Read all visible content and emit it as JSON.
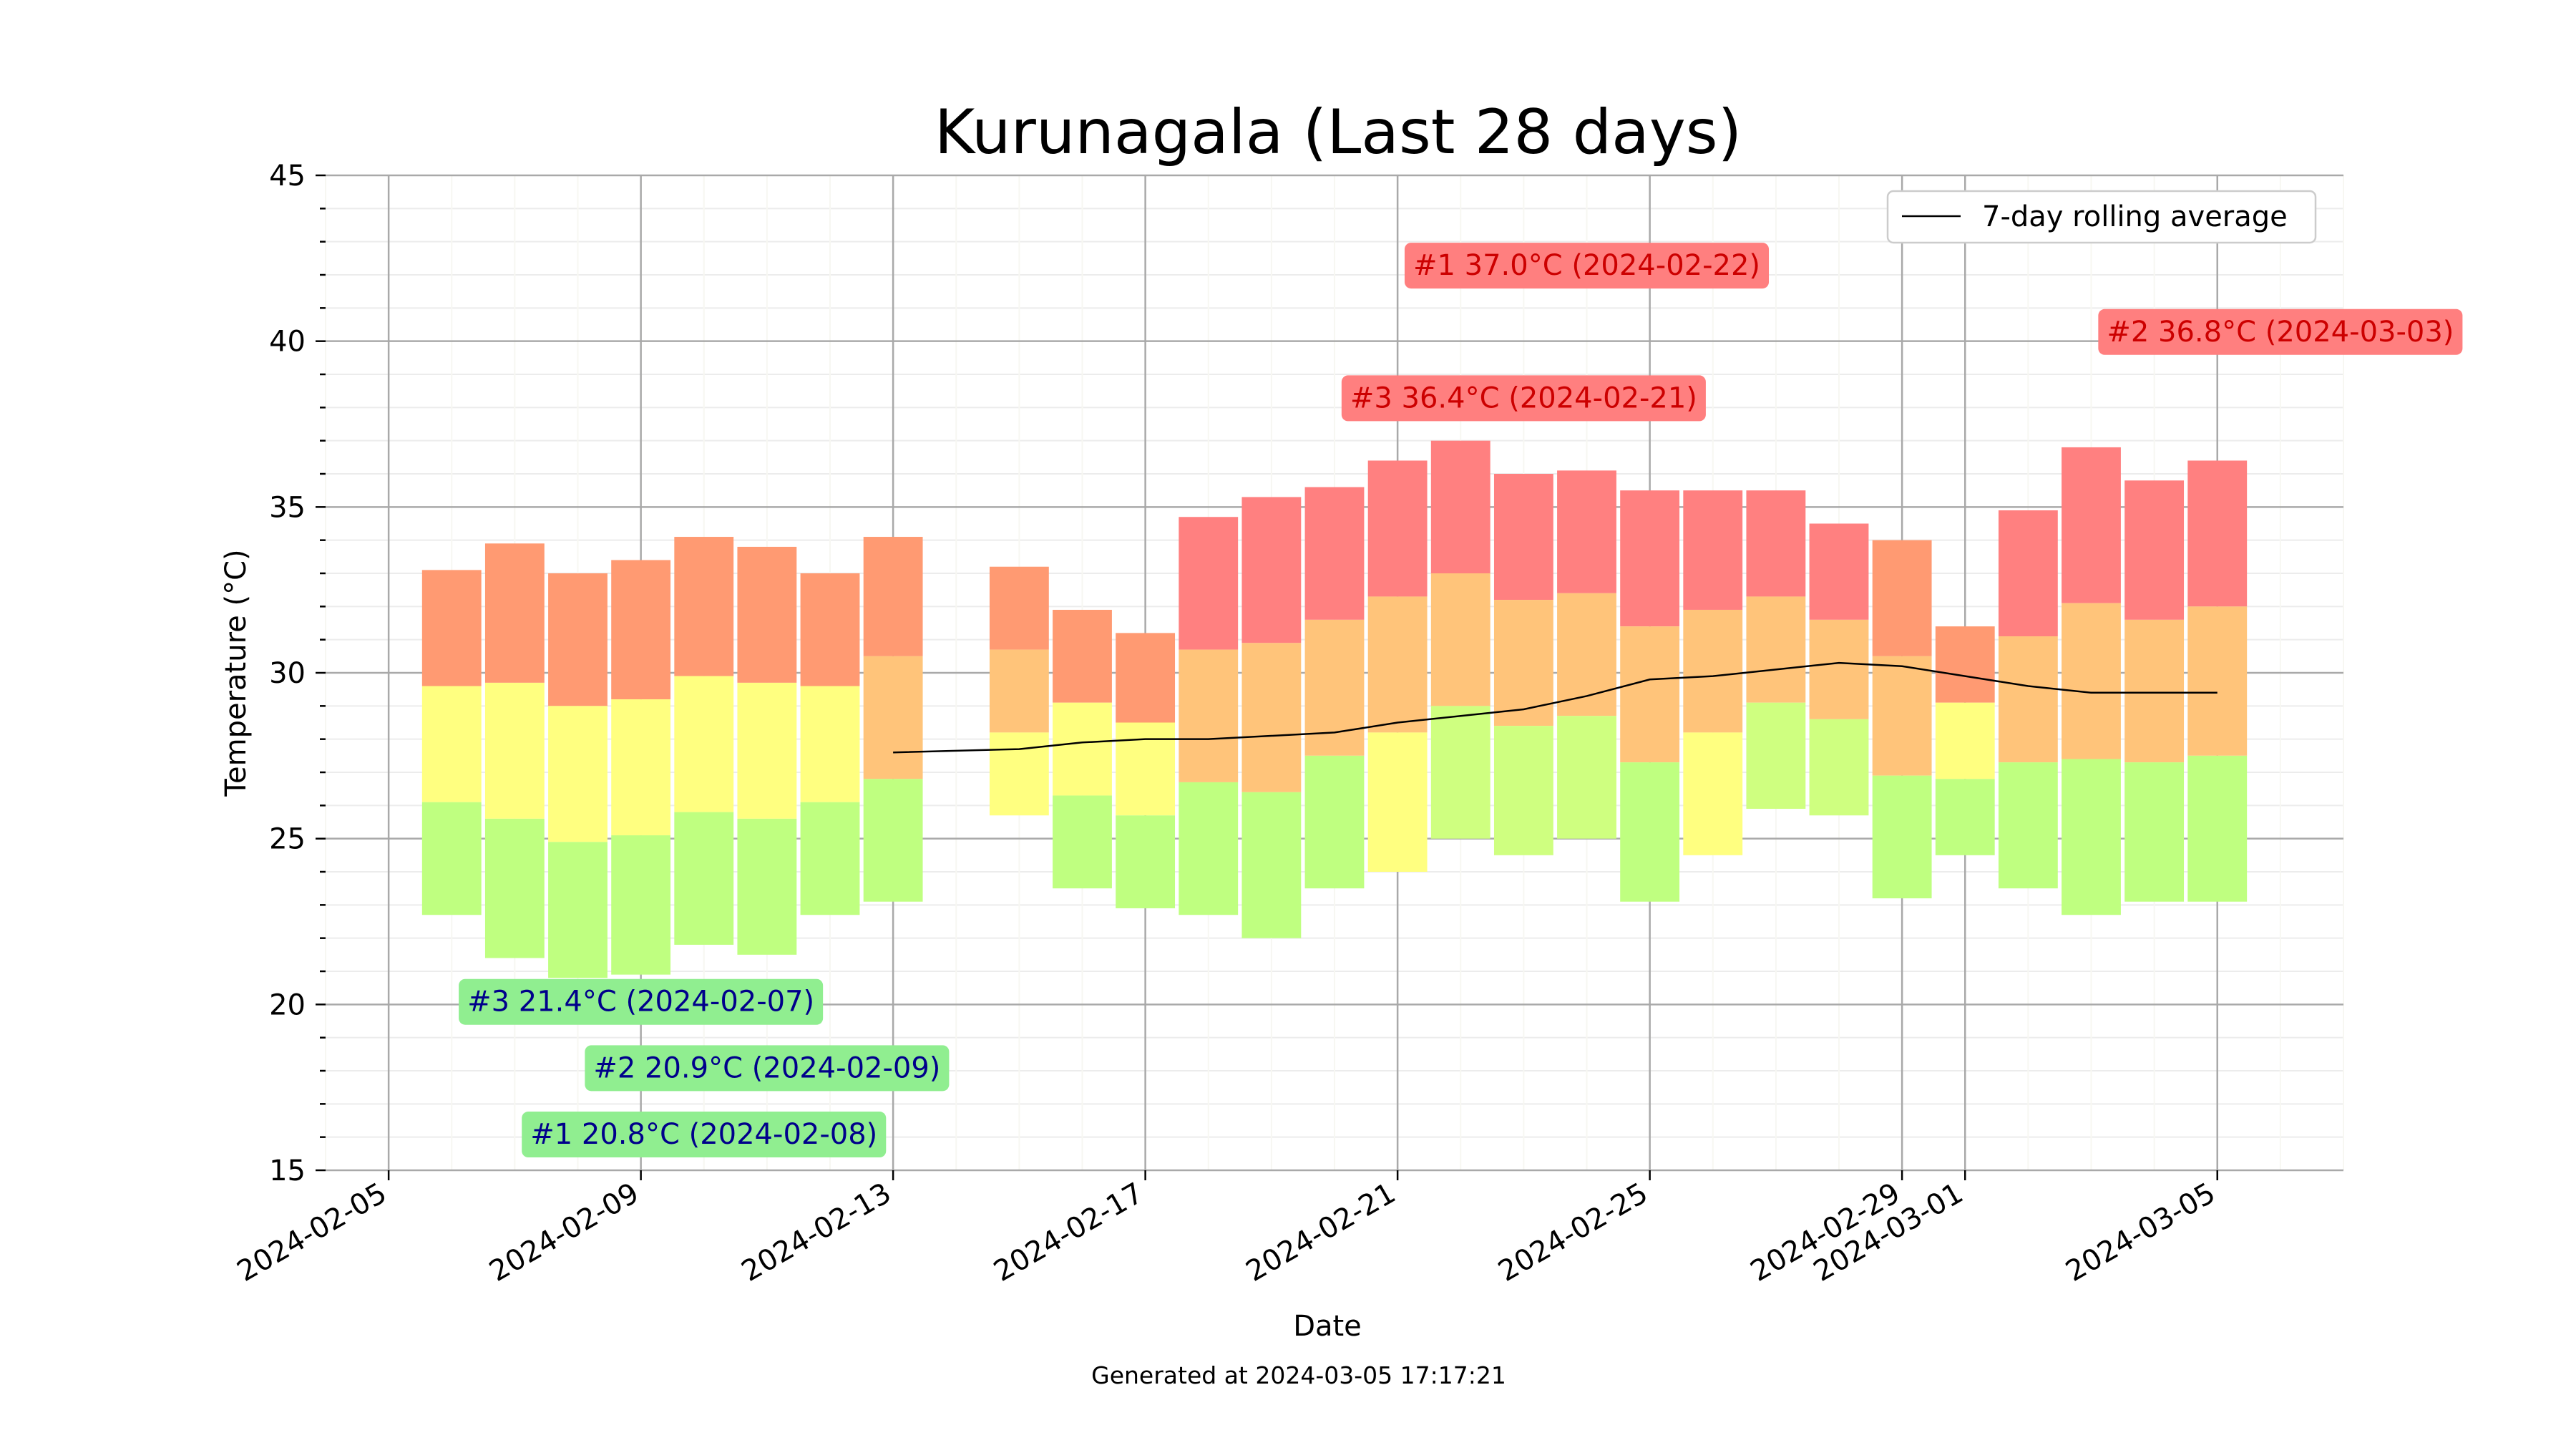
{
  "chart_data": {
    "type": "bar",
    "title": "Kurunagala (Last 28 days)",
    "xlabel": "Date",
    "ylabel": "Temperature (°C)",
    "footer": "Generated at 2024-03-05 17:17:21",
    "ylim": [
      15,
      45
    ],
    "y_ticks": [
      15,
      20,
      25,
      30,
      35,
      40,
      45
    ],
    "x_range": [
      "2024-02-04",
      "2024-03-07"
    ],
    "x_tick_labels": [
      "2024-02-05",
      "2024-02-09",
      "2024-02-13",
      "2024-02-17",
      "2024-02-21",
      "2024-02-25",
      "2024-02-29",
      "2024-03-01",
      "2024-03-05"
    ],
    "grid": true,
    "legend": {
      "position": "top-right",
      "entries": [
        "7-day rolling average"
      ]
    },
    "colors": {
      "hot": "#ff8080",
      "warm_high": "#ff9a72",
      "warm": "#ffc47a",
      "mild": "#ffff80",
      "mild_green": "#cfff80",
      "cool": "#bfff80",
      "cool_green": "#99ff80"
    },
    "days": [
      {
        "date": "2024-02-06",
        "min": 22.7,
        "mean": 26.1,
        "median": 29.6,
        "max": 33.1
      },
      {
        "date": "2024-02-07",
        "min": 21.4,
        "mean": 25.6,
        "median": 29.7,
        "max": 33.9
      },
      {
        "date": "2024-02-08",
        "min": 20.8,
        "mean": 24.9,
        "median": 29.0,
        "max": 33.0
      },
      {
        "date": "2024-02-09",
        "min": 20.9,
        "mean": 25.1,
        "median": 29.2,
        "max": 33.4
      },
      {
        "date": "2024-02-10",
        "min": 21.8,
        "mean": 25.8,
        "median": 29.9,
        "max": 34.1
      },
      {
        "date": "2024-02-11",
        "min": 21.5,
        "mean": 25.6,
        "median": 29.7,
        "max": 33.8
      },
      {
        "date": "2024-02-12",
        "min": 22.7,
        "mean": 26.1,
        "median": 29.6,
        "max": 33.0
      },
      {
        "date": "2024-02-13",
        "min": 23.1,
        "mean": 26.8,
        "median": 30.5,
        "max": 34.1
      },
      {
        "date": "2024-02-15",
        "min": 25.7,
        "mean": 28.2,
        "median": 30.7,
        "max": 33.2
      },
      {
        "date": "2024-02-16",
        "min": 23.5,
        "mean": 26.3,
        "median": 29.1,
        "max": 31.9
      },
      {
        "date": "2024-02-17",
        "min": 22.9,
        "mean": 25.7,
        "median": 28.5,
        "max": 31.2
      },
      {
        "date": "2024-02-18",
        "min": 22.7,
        "mean": 26.7,
        "median": 30.7,
        "max": 34.7
      },
      {
        "date": "2024-02-19",
        "min": 22.0,
        "mean": 26.4,
        "median": 30.9,
        "max": 35.3
      },
      {
        "date": "2024-02-20",
        "min": 23.5,
        "mean": 27.5,
        "median": 31.6,
        "max": 35.6
      },
      {
        "date": "2024-02-21",
        "min": 24.0,
        "mean": 28.2,
        "median": 32.3,
        "max": 36.4
      },
      {
        "date": "2024-02-22",
        "min": 25.0,
        "mean": 29.0,
        "median": 33.0,
        "max": 37.0
      },
      {
        "date": "2024-02-23",
        "min": 24.5,
        "mean": 28.4,
        "median": 32.2,
        "max": 36.0
      },
      {
        "date": "2024-02-24",
        "min": 25.0,
        "mean": 28.7,
        "median": 32.4,
        "max": 36.1
      },
      {
        "date": "2024-02-25",
        "min": 23.1,
        "mean": 27.3,
        "median": 31.4,
        "max": 35.5
      },
      {
        "date": "2024-02-26",
        "min": 24.5,
        "mean": 28.2,
        "median": 31.9,
        "max": 35.5
      },
      {
        "date": "2024-02-27",
        "min": 25.9,
        "mean": 29.1,
        "median": 32.3,
        "max": 35.5
      },
      {
        "date": "2024-02-28",
        "min": 25.7,
        "mean": 28.6,
        "median": 31.6,
        "max": 34.5
      },
      {
        "date": "2024-02-29",
        "min": 23.2,
        "mean": 26.9,
        "median": 30.5,
        "max": 34.0
      },
      {
        "date": "2024-03-01",
        "min": 24.5,
        "mean": 26.8,
        "median": 29.1,
        "max": 31.4
      },
      {
        "date": "2024-03-02",
        "min": 23.5,
        "mean": 27.3,
        "median": 31.1,
        "max": 34.9
      },
      {
        "date": "2024-03-03",
        "min": 22.7,
        "mean": 27.4,
        "median": 32.1,
        "max": 36.8
      },
      {
        "date": "2024-03-04",
        "min": 23.1,
        "mean": 27.3,
        "median": 31.6,
        "max": 35.8
      },
      {
        "date": "2024-03-05",
        "min": 23.1,
        "mean": 27.5,
        "median": 32.0,
        "max": 36.4
      }
    ],
    "series": [
      {
        "name": "7-day rolling average",
        "x": [
          "2024-02-13",
          "2024-02-15",
          "2024-02-16",
          "2024-02-17",
          "2024-02-18",
          "2024-02-19",
          "2024-02-20",
          "2024-02-21",
          "2024-02-22",
          "2024-02-23",
          "2024-02-24",
          "2024-02-25",
          "2024-02-26",
          "2024-02-27",
          "2024-02-28",
          "2024-02-29",
          "2024-03-01",
          "2024-03-02",
          "2024-03-03",
          "2024-03-04",
          "2024-03-05"
        ],
        "values": [
          27.6,
          27.7,
          27.9,
          28.0,
          28.0,
          28.1,
          28.2,
          28.5,
          28.7,
          28.9,
          29.3,
          29.8,
          29.9,
          30.1,
          30.3,
          30.2,
          29.9,
          29.6,
          29.4,
          29.4,
          29.4
        ]
      }
    ],
    "annotations": [
      {
        "text": "#1 37.0°C (2024-02-22)",
        "date": "2024-02-24",
        "value": 42.3,
        "kind": "hot"
      },
      {
        "text": "#2 36.8°C (2024-03-03)",
        "date": "2024-03-06",
        "value": 40.3,
        "kind": "hot"
      },
      {
        "text": "#3 36.4°C (2024-02-21)",
        "date": "2024-02-23",
        "value": 38.3,
        "kind": "hot"
      },
      {
        "text": "#3 21.4°C (2024-02-07)",
        "date": "2024-02-09",
        "value": 20.1,
        "kind": "cold"
      },
      {
        "text": "#2 20.9°C (2024-02-09)",
        "date": "2024-02-11",
        "value": 18.1,
        "kind": "cold"
      },
      {
        "text": "#1 20.8°C (2024-02-08)",
        "date": "2024-02-10",
        "value": 16.1,
        "kind": "cold"
      }
    ]
  }
}
